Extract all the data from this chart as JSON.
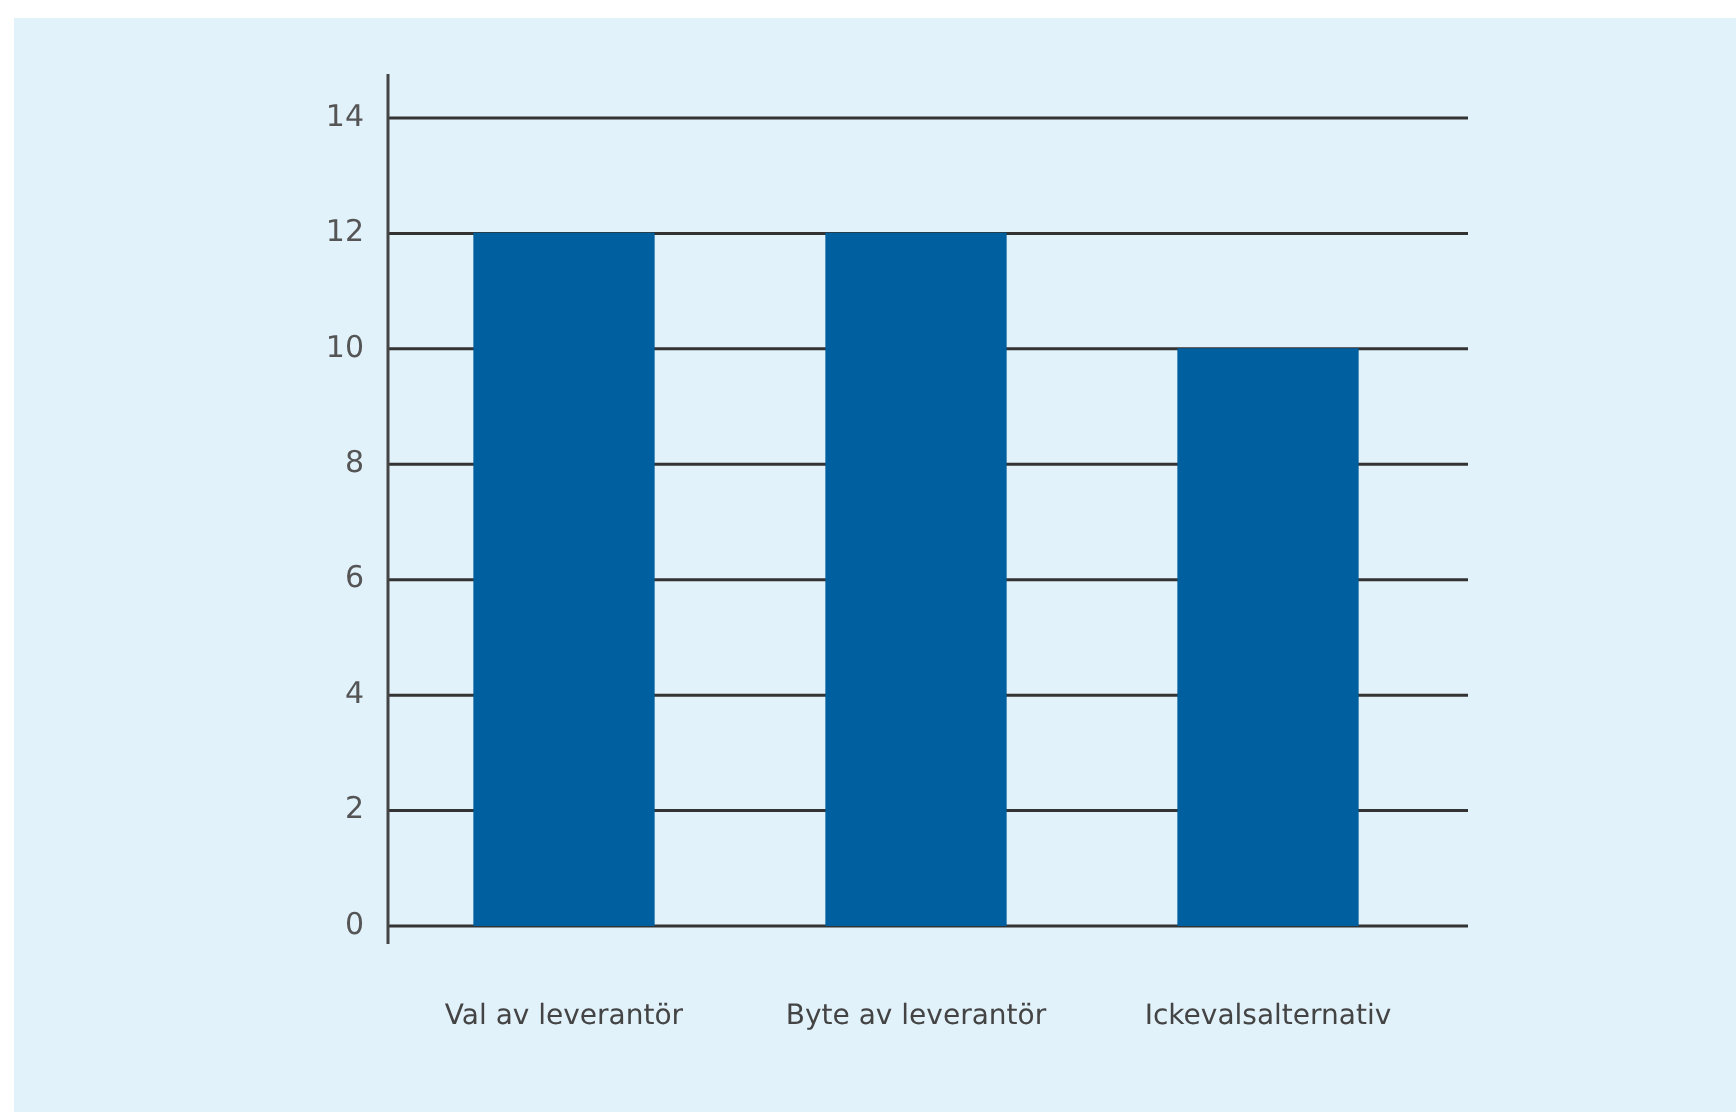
{
  "chart_data": {
    "type": "bar",
    "categories": [
      "Val av leverantör",
      "Byte av leverantör",
      "Ickevalsalternativ"
    ],
    "values": [
      12,
      12,
      10
    ],
    "color": "#005f9e",
    "ylim": [
      0,
      14
    ],
    "yticks": [
      0,
      2,
      4,
      6,
      8,
      10,
      12,
      14
    ],
    "grid": true
  }
}
